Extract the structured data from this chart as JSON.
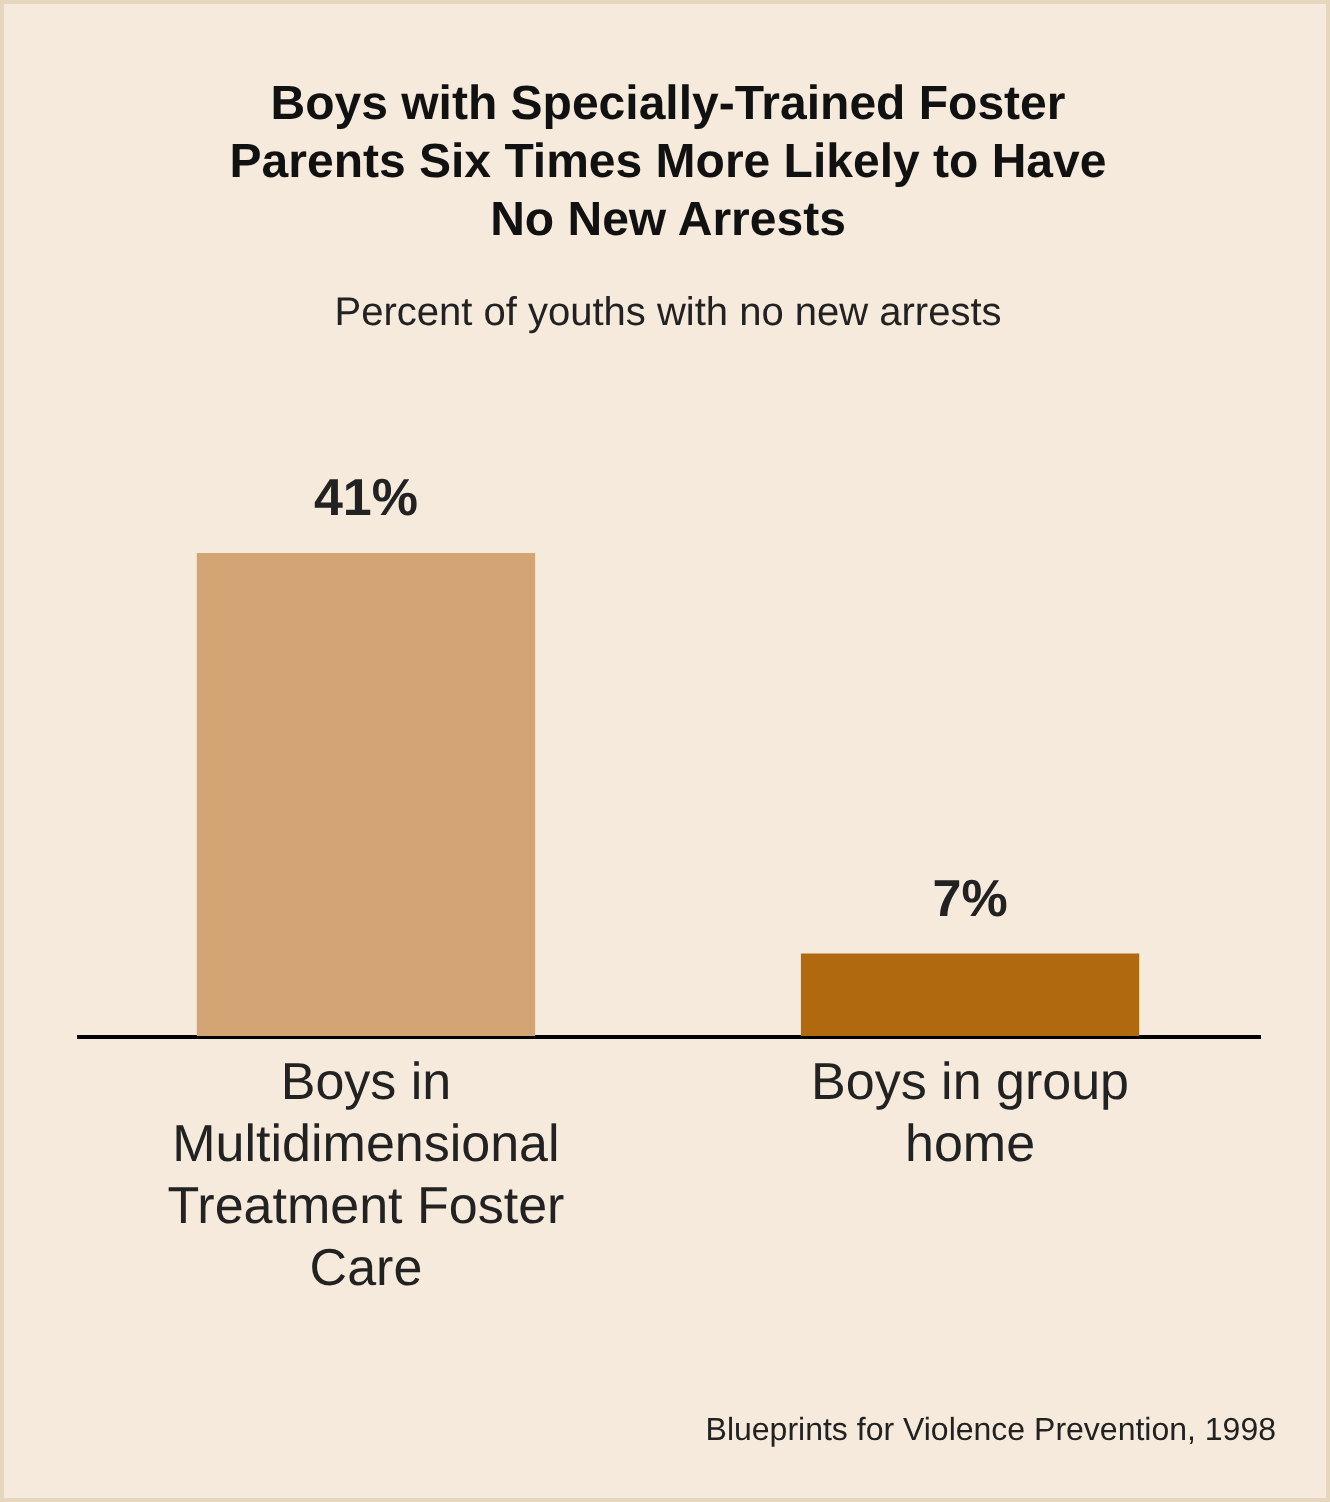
{
  "chart_data": {
    "type": "bar",
    "title": "Boys with Specially-Trained Foster Parents Six Times More Likely to Have No New Arrests",
    "subtitle": "Percent of youths with no new arrests",
    "categories": [
      "Boys in Multidimensional Treatment Foster Care",
      "Boys in group home"
    ],
    "values": [
      41,
      7
    ],
    "colors": [
      "#d4a574",
      "#b0690f"
    ],
    "value_labels": [
      "41%",
      "7%"
    ],
    "annotations": [
      "Blueprints for Violence Prevention, 1998"
    ]
  }
}
